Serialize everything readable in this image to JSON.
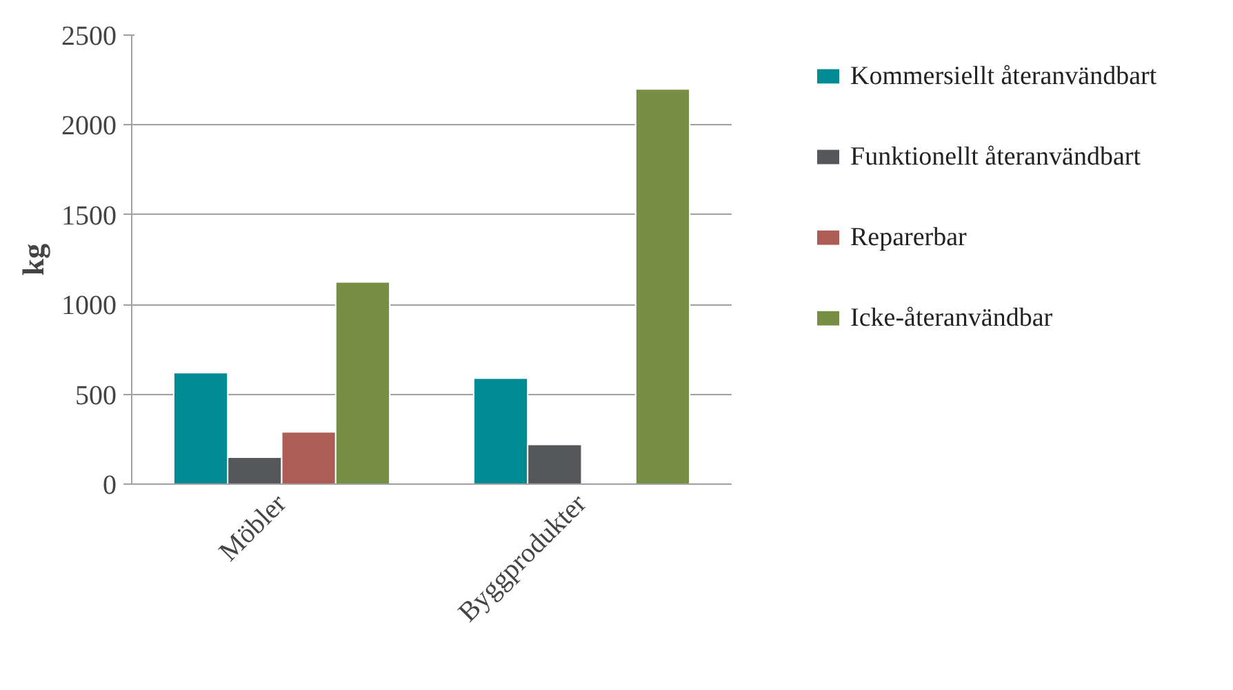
{
  "chart_data": {
    "type": "bar",
    "ylabel": "kg",
    "categories": [
      "Möbler",
      "Byggprodukter"
    ],
    "series": [
      {
        "name": "Kommersiellt återanvändbart",
        "color": "#008b94",
        "values": [
          620,
          590
        ]
      },
      {
        "name": "Funktionellt återanvändbart",
        "color": "#55575b",
        "values": [
          150,
          220
        ]
      },
      {
        "name": "Reparerbar",
        "color": "#ad5d55",
        "values": [
          290,
          null
        ]
      },
      {
        "name": "Icke-återanvändbar",
        "color": "#778f45",
        "values": [
          1125,
          2200
        ]
      }
    ],
    "ylim": [
      0,
      2500
    ],
    "yticks": [
      0,
      500,
      1000,
      1500,
      2000,
      2500
    ],
    "grid": "y",
    "legend": "right"
  }
}
